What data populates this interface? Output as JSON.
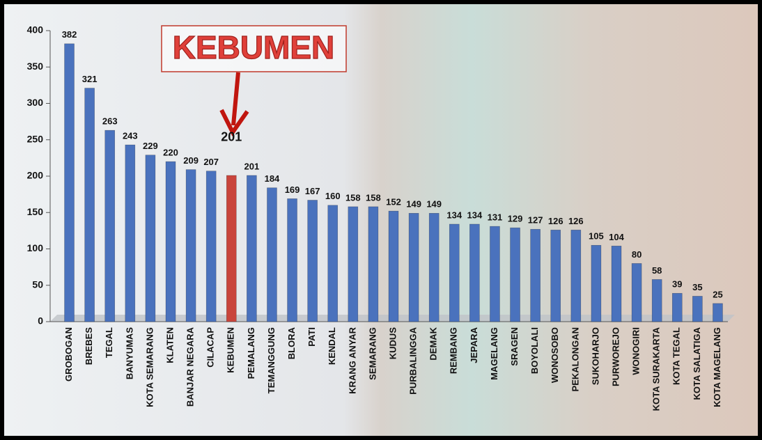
{
  "chart_data": {
    "type": "bar",
    "annotation": "KEBUMEN",
    "categories": [
      "GROBOGAN",
      "BREBES",
      "TEGAL",
      "BANYUMAS",
      "KOTA SEMARANG",
      "KLATEN",
      "BANJAR NEGARA",
      "CILACAP",
      "KEBUMEN",
      "PEMALANG",
      "TEMANGGUNG",
      "BLORA",
      "PATI",
      "KENDAL",
      "KRANG ANYAR",
      "SEMARANG",
      "KUDUS",
      "PURBALINGGA",
      "DEMAK",
      "REMBANG",
      "JEPARA",
      "MAGELANG",
      "SRAGEN",
      "BOYOLALI",
      "WONOSOBO",
      "PEKALONGAN",
      "SUKOHARJO",
      "PURWOREJO",
      "WONOGIRI",
      "KOTA SURAKARTA",
      "KOTA TEGAL",
      "KOTA SALATIGA",
      "KOTA MAGELANG"
    ],
    "values": [
      382,
      321,
      263,
      243,
      229,
      220,
      209,
      207,
      201,
      201,
      184,
      169,
      167,
      160,
      158,
      158,
      152,
      149,
      149,
      134,
      134,
      131,
      129,
      127,
      126,
      126,
      105,
      104,
      80,
      58,
      39,
      35,
      25
    ],
    "color": "#4a72bd",
    "highlight_color": "#c9453c",
    "ylim": [
      0,
      400
    ],
    "yticks": [
      0,
      50,
      100,
      150,
      200,
      250,
      300,
      350,
      400
    ]
  }
}
